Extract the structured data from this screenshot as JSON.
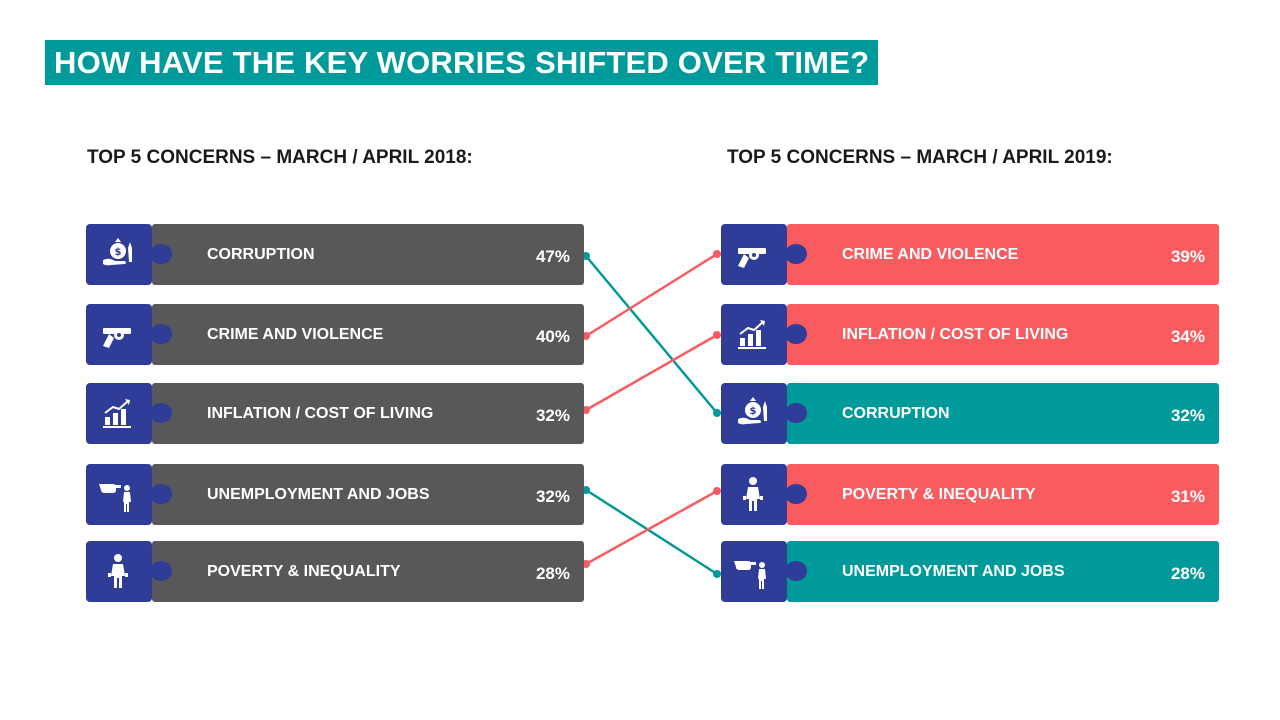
{
  "title": "HOW HAVE THE KEY WORRIES SHIFTED OVER TIME?",
  "left": {
    "heading": "TOP 5 CONCERNS – MARCH / APRIL 2018:",
    "items": [
      {
        "label": "CORRUPTION",
        "value": "47%",
        "icon": "money-bag-hand-icon"
      },
      {
        "label": "CRIME AND VIOLENCE",
        "value": "40%",
        "icon": "revolver-icon"
      },
      {
        "label": "INFLATION / COST OF LIVING",
        "value": "32%",
        "icon": "rising-chart-icon"
      },
      {
        "label": "UNEMPLOYMENT AND JOBS",
        "value": "32%",
        "icon": "pointing-hand-person-icon"
      },
      {
        "label": "POVERTY & INEQUALITY",
        "value": "28%",
        "icon": "person-empty-pockets-icon"
      }
    ]
  },
  "right": {
    "heading": "TOP 5 CONCERNS – MARCH / APRIL 2019:",
    "items": [
      {
        "label": "CRIME AND VIOLENCE",
        "value": "39%",
        "icon": "revolver-icon",
        "trend": "up"
      },
      {
        "label": "INFLATION / COST OF LIVING",
        "value": "34%",
        "icon": "rising-chart-icon",
        "trend": "up"
      },
      {
        "label": "CORRUPTION",
        "value": "32%",
        "icon": "money-bag-hand-icon",
        "trend": "down"
      },
      {
        "label": "POVERTY & INEQUALITY",
        "value": "31%",
        "icon": "person-empty-pockets-icon",
        "trend": "up"
      },
      {
        "label": "UNEMPLOYMENT AND JOBS",
        "value": "28%",
        "icon": "pointing-hand-person-icon",
        "trend": "down"
      }
    ]
  },
  "links": [
    {
      "from": 0,
      "to": 2,
      "trend": "down"
    },
    {
      "from": 1,
      "to": 0,
      "trend": "up"
    },
    {
      "from": 2,
      "to": 1,
      "trend": "up"
    },
    {
      "from": 3,
      "to": 4,
      "trend": "down"
    },
    {
      "from": 4,
      "to": 3,
      "trend": "up"
    }
  ],
  "colors": {
    "title_bg": "#009a9a",
    "icon_bg": "#2f3c98",
    "neutral_bar": "#58585a",
    "up": "#f95b5f",
    "down": "#009a9a"
  }
}
